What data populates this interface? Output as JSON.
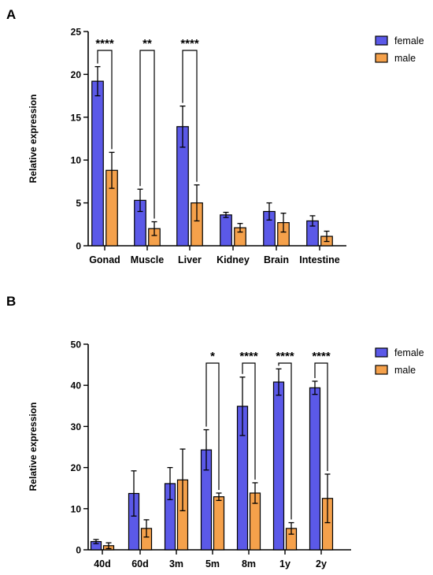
{
  "colors": {
    "female": "#5b59e8",
    "male": "#f5a14b",
    "axis": "#000000"
  },
  "chart_data": [
    {
      "panel_label": "A",
      "type": "bar",
      "ylabel": "Relative expression",
      "xlabel": "",
      "ylim": [
        0,
        25
      ],
      "yticks": [
        0,
        5,
        10,
        15,
        20,
        25
      ],
      "categories": [
        "Gonad",
        "Muscle",
        "Liver",
        "Kidney",
        "Brain",
        "Intestine"
      ],
      "legend_position": "top-right",
      "series": [
        {
          "name": "female",
          "values": [
            19.2,
            5.3,
            13.9,
            3.6,
            4.0,
            2.9
          ],
          "errors": [
            1.7,
            1.3,
            2.4,
            0.3,
            1.0,
            0.6
          ]
        },
        {
          "name": "male",
          "values": [
            8.8,
            2.0,
            5.0,
            2.1,
            2.7,
            1.1
          ],
          "errors": [
            2.1,
            0.8,
            2.1,
            0.5,
            1.1,
            0.6
          ]
        }
      ],
      "significance": [
        {
          "category": "Gonad",
          "label": "****"
        },
        {
          "category": "Muscle",
          "label": "**"
        },
        {
          "category": "Liver",
          "label": "****"
        }
      ]
    },
    {
      "panel_label": "B",
      "type": "bar",
      "ylabel": "Relative expression",
      "xlabel": "",
      "ylim": [
        0,
        50
      ],
      "yticks": [
        0,
        10,
        20,
        30,
        40,
        50
      ],
      "categories": [
        "40d",
        "60d",
        "3m",
        "5m",
        "8m",
        "1y",
        "2y"
      ],
      "legend_position": "top-right",
      "series": [
        {
          "name": "female",
          "values": [
            2.0,
            13.7,
            16.1,
            24.3,
            34.9,
            40.8,
            39.4
          ],
          "errors": [
            0.5,
            5.5,
            3.9,
            4.9,
            7.1,
            3.2,
            1.6
          ]
        },
        {
          "name": "male",
          "values": [
            1.0,
            5.2,
            17.0,
            12.9,
            13.8,
            5.2,
            12.5
          ],
          "errors": [
            0.7,
            2.1,
            7.5,
            0.9,
            2.5,
            1.4,
            5.9
          ]
        }
      ],
      "significance": [
        {
          "category": "5m",
          "label": "*"
        },
        {
          "category": "8m",
          "label": "****"
        },
        {
          "category": "1y",
          "label": "****"
        },
        {
          "category": "2y",
          "label": "****"
        }
      ]
    }
  ]
}
